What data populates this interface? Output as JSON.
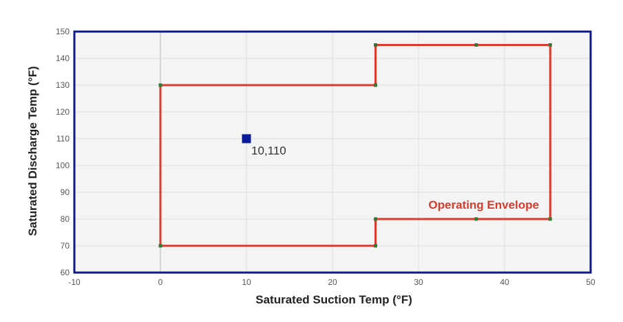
{
  "chart_data": {
    "type": "line",
    "xlabel": "Saturated Suction Temp (°F)",
    "ylabel": "Saturated Discharge Temp (°F)",
    "xlim": [
      -10,
      50
    ],
    "ylim": [
      60,
      150
    ],
    "x_ticks": [
      -10,
      0,
      10,
      20,
      30,
      40,
      50
    ],
    "y_ticks": [
      60,
      70,
      80,
      90,
      100,
      110,
      120,
      130,
      140,
      150
    ],
    "x_tick_labels": [
      "-10",
      "0",
      "10",
      "20",
      "30",
      "40",
      "50"
    ],
    "y_tick_labels": [
      "60",
      "70",
      "80",
      "90",
      "100",
      "110",
      "120",
      "130",
      "140",
      "150"
    ],
    "grid": true,
    "series": [
      {
        "name": "Operating Envelope",
        "color": "#d93a2b",
        "marker_color": "#2e7d32",
        "closed": true,
        "points": [
          {
            "x": 0,
            "y": 70
          },
          {
            "x": 0,
            "y": 130
          },
          {
            "x": 25,
            "y": 130
          },
          {
            "x": 25,
            "y": 145
          },
          {
            "x": 36.7,
            "y": 145
          },
          {
            "x": 45.3,
            "y": 145
          },
          {
            "x": 45.3,
            "y": 80
          },
          {
            "x": 36.7,
            "y": 80
          },
          {
            "x": 25,
            "y": 80
          },
          {
            "x": 25,
            "y": 70
          }
        ]
      }
    ],
    "operating_point": {
      "x": 10,
      "y": 110,
      "label": "10,110",
      "color": "#0a1a9a"
    },
    "annotations": [
      {
        "text": "Operating Envelope",
        "color": "#d93a2b"
      }
    ],
    "colors": {
      "plot_background": "#f4f4f4",
      "plot_border": "#0d1a8a",
      "grid": "#dddddd",
      "zero_line": "#c8c8c8"
    }
  }
}
